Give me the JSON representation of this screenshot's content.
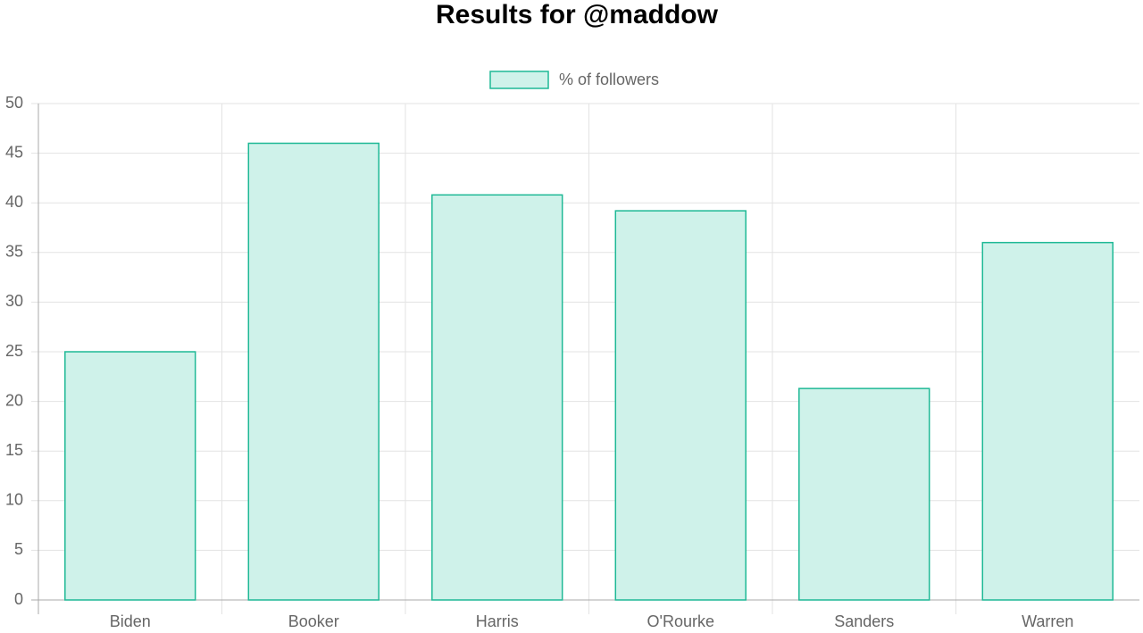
{
  "chart_data": {
    "type": "bar",
    "title": "Results for @maddow",
    "categories": [
      "Biden",
      "Booker",
      "Harris",
      "O'Rourke",
      "Sanders",
      "Warren"
    ],
    "series": [
      {
        "name": "% of followers",
        "color": "#1fb996",
        "fill": "#cff2ea",
        "values": [
          25,
          46,
          40.8,
          39.2,
          21.3,
          36
        ]
      }
    ],
    "ylim": [
      0,
      50
    ],
    "yticks": [
      0,
      5,
      10,
      15,
      20,
      25,
      30,
      35,
      40,
      45,
      50
    ],
    "grid": true,
    "legend": "top"
  }
}
